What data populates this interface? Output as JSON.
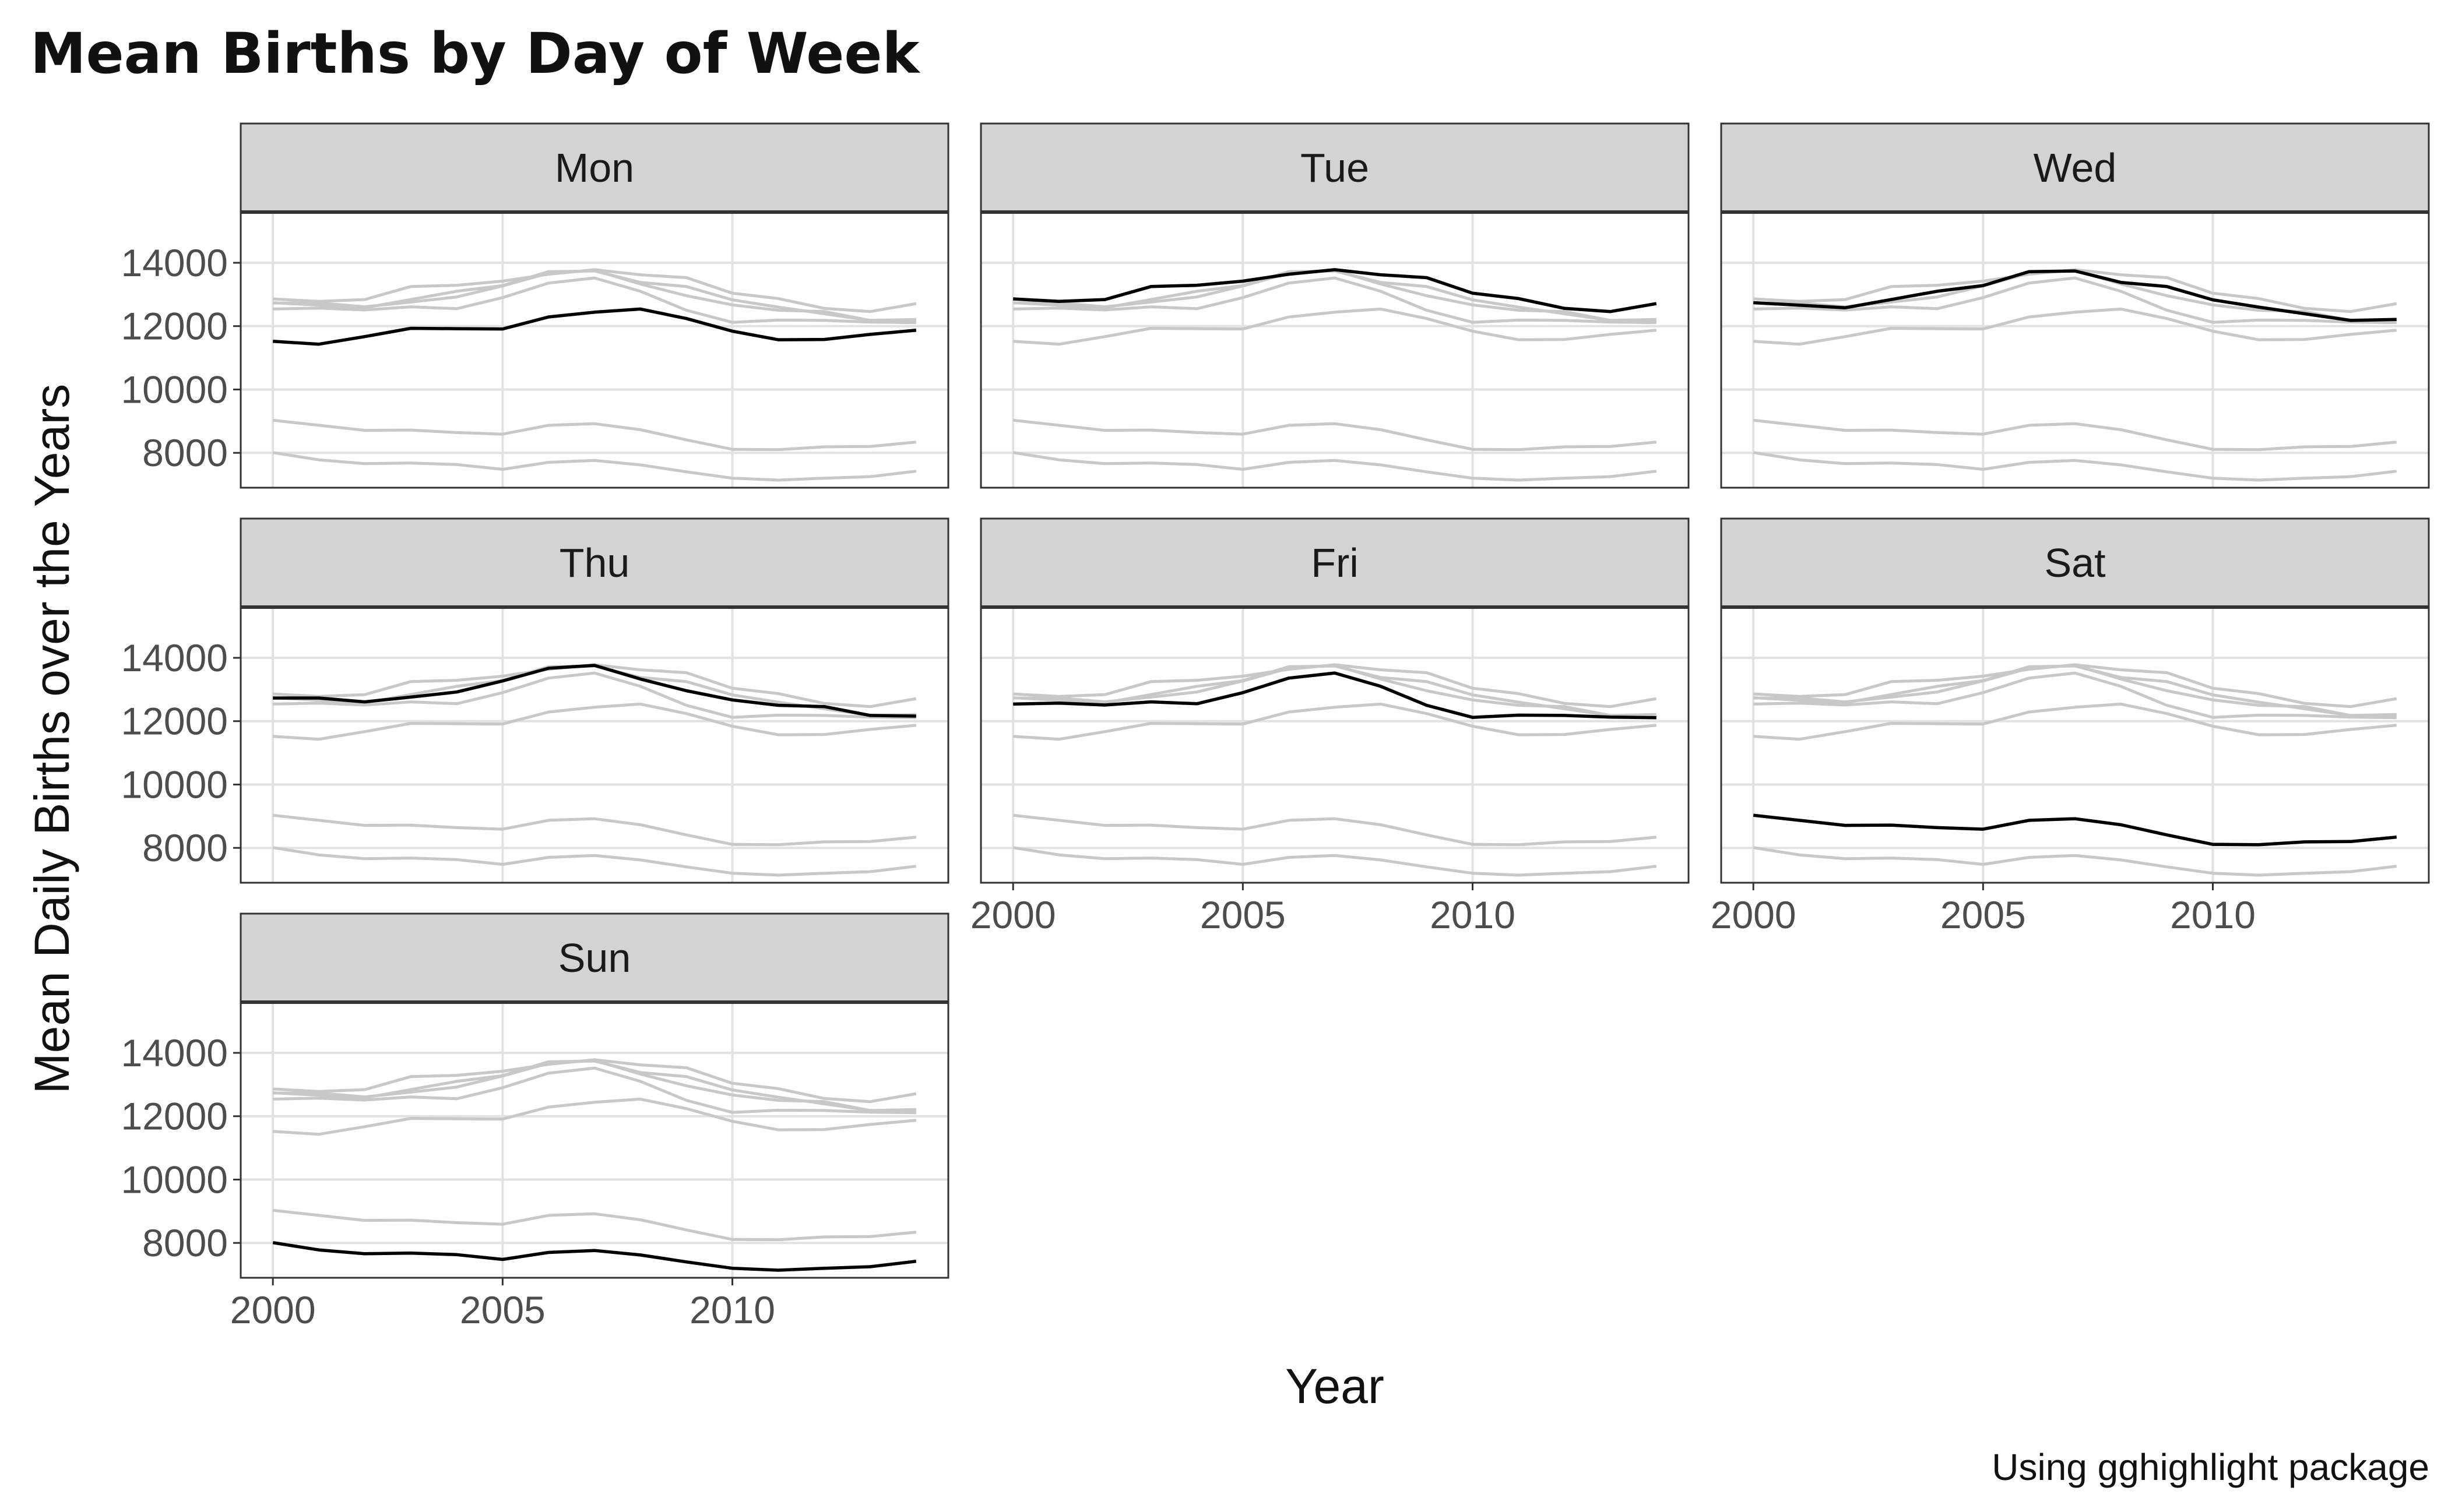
{
  "chart_data": {
    "type": "line",
    "title": "Mean Births by Day of Week",
    "xlabel": "Year",
    "ylabel": "Mean Daily Births over the Years",
    "caption": "Using gghighlight package",
    "facet_by": "day of week",
    "highlight": "each panel highlights its own day in black; all other days shown in light grey",
    "x": [
      2000,
      2001,
      2002,
      2003,
      2004,
      2005,
      2006,
      2007,
      2008,
      2009,
      2010,
      2011,
      2012,
      2013,
      2014
    ],
    "x_ticks": [
      2000,
      2005,
      2010
    ],
    "x_tick_labels": [
      "2000",
      "2005",
      "2010"
    ],
    "xlim": [
      1999.3,
      2014.7
    ],
    "y_ticks": [
      8000,
      10000,
      12000,
      14000
    ],
    "y_tick_labels": [
      "8000",
      "10000",
      "12000",
      "14000"
    ],
    "ylim": [
      6900,
      15600
    ],
    "series": [
      {
        "name": "Mon",
        "values": [
          11520,
          11430,
          11670,
          11930,
          11920,
          11910,
          12290,
          12440,
          12540,
          12240,
          11840,
          11570,
          11580,
          11740,
          11870
        ]
      },
      {
        "name": "Tue",
        "values": [
          12860,
          12780,
          12840,
          13250,
          13290,
          13420,
          13640,
          13780,
          13620,
          13530,
          13040,
          12870,
          12560,
          12460,
          12710
        ]
      },
      {
        "name": "Wed",
        "values": [
          12740,
          12660,
          12580,
          12840,
          13100,
          13280,
          13720,
          13740,
          13380,
          13250,
          12830,
          12600,
          12390,
          12180,
          12210
        ]
      },
      {
        "name": "Thu",
        "values": [
          12730,
          12730,
          12610,
          12760,
          12920,
          13270,
          13670,
          13760,
          13330,
          12960,
          12670,
          12500,
          12460,
          12180,
          12160
        ]
      },
      {
        "name": "Fri",
        "values": [
          12540,
          12570,
          12510,
          12610,
          12550,
          12900,
          13360,
          13520,
          13100,
          12500,
          12120,
          12190,
          12180,
          12130,
          12110
        ]
      },
      {
        "name": "Sat",
        "values": [
          9030,
          8870,
          8710,
          8720,
          8640,
          8590,
          8870,
          8920,
          8730,
          8410,
          8110,
          8100,
          8190,
          8200,
          8340
        ]
      },
      {
        "name": "Sun",
        "values": [
          8010,
          7780,
          7660,
          7680,
          7630,
          7480,
          7700,
          7760,
          7620,
          7400,
          7200,
          7140,
          7200,
          7250,
          7420
        ]
      }
    ]
  },
  "colors": {
    "highlight": "#000000",
    "background_lines": "#c8c8c8",
    "strip_fill": "#d3d3d3",
    "grid": "#e2e2e2",
    "panel_border": "#333333"
  }
}
